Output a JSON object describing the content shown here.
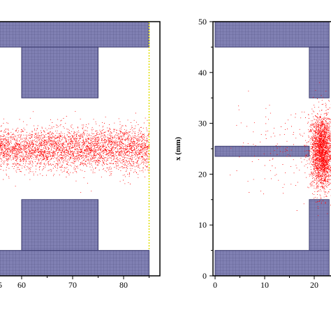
{
  "chart_data": [
    {
      "type": "scatter",
      "title": "",
      "xlabel": "",
      "ylabel": "",
      "xlim": [
        45,
        88
      ],
      "ylim": [
        0,
        50
      ],
      "xticks": [
        60,
        70,
        80
      ],
      "tick_labels": [
        "60",
        "70",
        "80"
      ],
      "wall_color": "#7f7fb2",
      "particle_color": "#ff0000",
      "boundary_color": "#e0e000",
      "walls": [
        {
          "name": "top-bar",
          "x": [
            45,
            85
          ],
          "y": [
            45,
            50
          ]
        },
        {
          "name": "top-block",
          "x": [
            60,
            75
          ],
          "y": [
            35,
            45
          ]
        },
        {
          "name": "bottom-block",
          "x": [
            60,
            75
          ],
          "y": [
            5,
            15
          ]
        },
        {
          "name": "bottom-bar",
          "x": [
            45,
            85
          ],
          "y": [
            0,
            5
          ]
        }
      ],
      "outlet_x": 85,
      "jet": {
        "x_range": [
          45,
          85
        ],
        "center_y": 25,
        "half_width_start": 4.2,
        "half_width_end": 5.2,
        "count": 5200
      }
    },
    {
      "type": "scatter",
      "title": "",
      "xlabel": "",
      "ylabel": "x (mm)",
      "xlim": [
        -1,
        23
      ],
      "ylim": [
        0,
        50
      ],
      "xticks": [
        0,
        10,
        20
      ],
      "tick_labels": [
        "0",
        "10",
        "20"
      ],
      "yticks": [
        0,
        10,
        20,
        30,
        40,
        50
      ],
      "ytick_labels": [
        "0",
        "10",
        "20",
        "30",
        "40",
        "50"
      ],
      "wall_color": "#7f7fb2",
      "particle_color": "#ff0000",
      "walls": [
        {
          "name": "top-bar",
          "x": [
            0,
            23
          ],
          "y": [
            45,
            50
          ]
        },
        {
          "name": "top-block",
          "x": [
            19,
            23
          ],
          "y": [
            35,
            45
          ]
        },
        {
          "name": "nozzle",
          "x": [
            0,
            19
          ],
          "y": [
            23.5,
            25.5
          ]
        },
        {
          "name": "bottom-block",
          "x": [
            19,
            23
          ],
          "y": [
            5,
            15
          ]
        },
        {
          "name": "bottom-bar",
          "x": [
            0,
            23
          ],
          "y": [
            0,
            5
          ]
        }
      ],
      "dense_cloud": {
        "center_x": 21.5,
        "center_y": 24.5,
        "spread_x": 2.0,
        "spread_y": 6.5,
        "count": 2600
      },
      "sparse_spray": {
        "x_range": [
          1,
          20
        ],
        "y_range": [
          12,
          37
        ],
        "count": 140
      }
    }
  ]
}
